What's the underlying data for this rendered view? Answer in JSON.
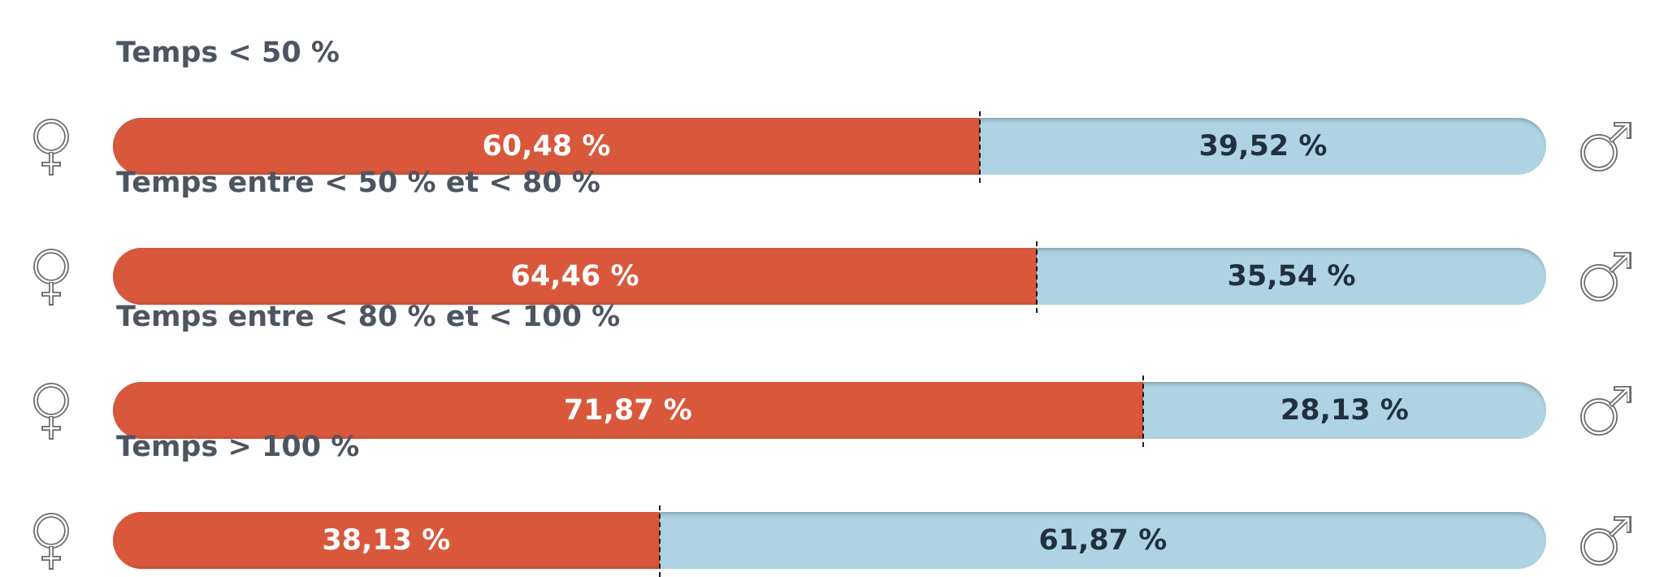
{
  "chart_data": {
    "type": "bar",
    "orientation": "horizontal-stacked-100",
    "categories": [
      "Temps < 50 %",
      "Temps entre < 50 % et < 80 %",
      "Temps entre < 80 % et < 100 %",
      "Temps > 100 %"
    ],
    "series": [
      {
        "values": [
          60.48,
          64.46,
          71.87,
          38.13
        ],
        "color": "#d9583c",
        "icon": "female-symbol-icon"
      },
      {
        "values": [
          39.52,
          35.54,
          28.13,
          61.87
        ],
        "color": "#aed3e3",
        "icon": "male-symbol-icon"
      }
    ],
    "labels": [
      [
        "60,48 %",
        "39,52 %"
      ],
      [
        "64,46 %",
        "35,54 %"
      ],
      [
        "71,87 %",
        "28,13 %"
      ],
      [
        "38,13 %",
        "61,87 %"
      ]
    ],
    "xlim": [
      0,
      100
    ],
    "grid": false,
    "legend": "icons at row ends"
  }
}
